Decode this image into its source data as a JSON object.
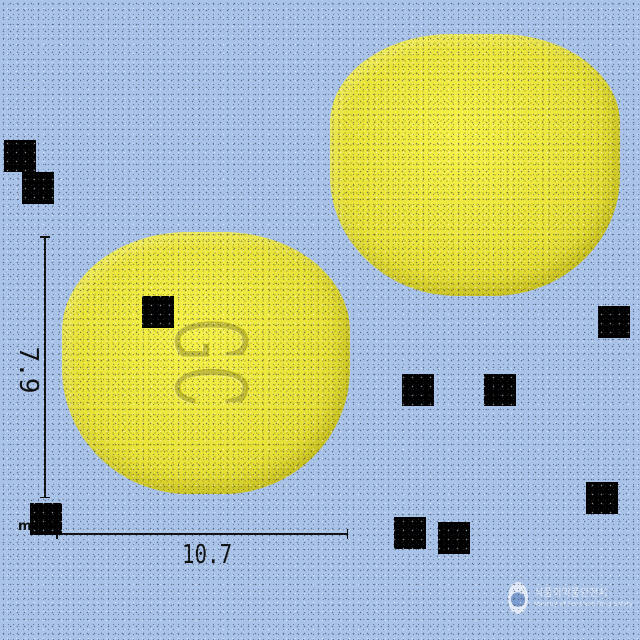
{
  "image": {
    "subject": "yellow tablets",
    "background_color": "#a9c2e8",
    "pill_color": "#eee63c"
  },
  "imprint": {
    "text": "GC"
  },
  "measurements": {
    "height_label": "7.9",
    "width_label": "10.7",
    "unit_label": "mm"
  },
  "watermark": {
    "korean_text": "식품의약품안전처",
    "english_text": "Ministry of Food and Drug Safety"
  }
}
